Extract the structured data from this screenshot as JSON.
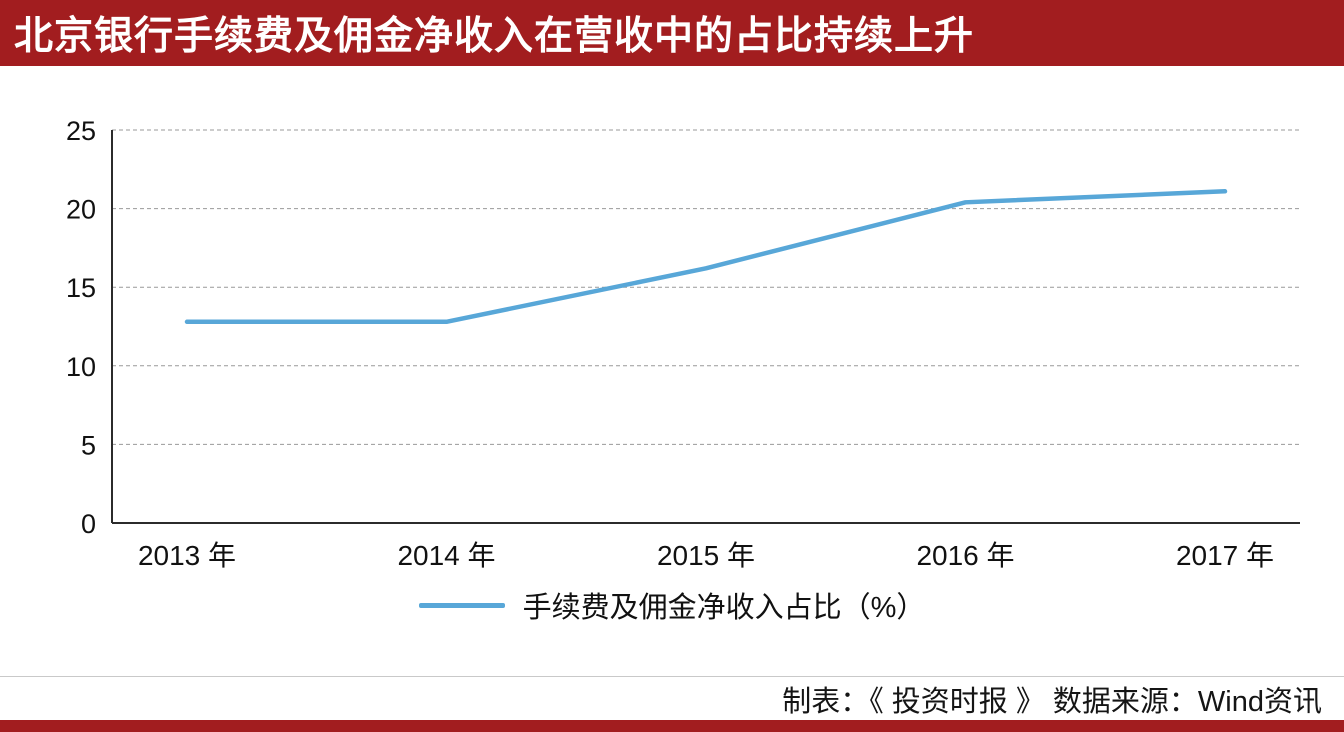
{
  "header": {
    "title": "北京银行手续费及佣金净收入在营收中的占比持续上升"
  },
  "chart_data": {
    "type": "line",
    "title": "北京银行手续费及佣金净收入在营收中的占比持续上升",
    "categories": [
      "2013 年",
      "2014 年",
      "2015 年",
      "2016 年",
      "2017 年"
    ],
    "series": [
      {
        "name": "手续费及佣金净收入占比（%）",
        "values": [
          12.8,
          12.8,
          16.2,
          20.4,
          21.1
        ],
        "color": "#58A7D8"
      }
    ],
    "xlabel": "",
    "ylabel": "",
    "ylim": [
      0,
      25
    ],
    "ytick_step": 5,
    "yticks": [
      0,
      5,
      10,
      15,
      20,
      25
    ],
    "grid": "horizontal-dashed",
    "legend_position": "bottom-center"
  },
  "legend": {
    "label": "手续费及佣金净收入占比（%）"
  },
  "footer": {
    "credit": "制表：《 投资时报 》  数据来源：Wind资讯"
  },
  "colors": {
    "banner": "#A21D1F",
    "line": "#58A7D8",
    "grid": "#999999",
    "axis": "#2B2B2B"
  }
}
